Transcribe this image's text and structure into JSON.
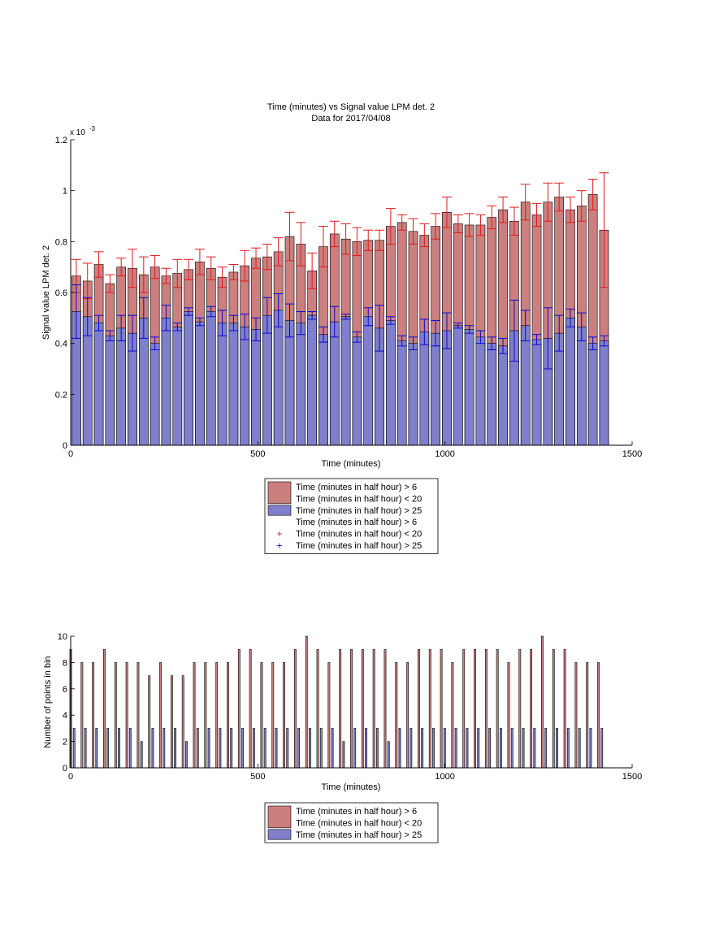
{
  "chart_data": [
    {
      "type": "bar",
      "title": "Time (minutes) vs Signal value LPM det. 2",
      "subtitle": "Data for 2017/04/08",
      "xlabel": "Time (minutes)",
      "ylabel": "Signal value LPM det. 2",
      "exponent_label": "x 10",
      "exponent_power": "-3",
      "xlim": [
        0,
        1500
      ],
      "ylim": [
        0,
        1.2
      ],
      "xticks": [
        "0",
        "500",
        "1000",
        "1500"
      ],
      "yticks": [
        "0",
        "0.2",
        "0.4",
        "0.6",
        "0.8",
        "1",
        "1.2"
      ],
      "grid": false,
      "legend_position": "below",
      "x": [
        15,
        45,
        75,
        105,
        135,
        165,
        195,
        225,
        255,
        285,
        315,
        345,
        375,
        405,
        435,
        465,
        495,
        525,
        555,
        585,
        615,
        645,
        675,
        705,
        735,
        765,
        795,
        825,
        855,
        885,
        915,
        945,
        975,
        1005,
        1035,
        1065,
        1095,
        1125,
        1155,
        1185,
        1215,
        1245,
        1275,
        1305,
        1335,
        1365,
        1395,
        1425
      ],
      "series": [
        {
          "name": "Time (minutes in half hour) > 6\nTime (minutes in half hour) < 20",
          "color": "#cc7f7f",
          "error_color": "#e0191b",
          "values": [
            0.665,
            0.645,
            0.71,
            0.635,
            0.7,
            0.695,
            0.67,
            0.7,
            0.665,
            0.675,
            0.69,
            0.72,
            0.695,
            0.66,
            0.68,
            0.705,
            0.735,
            0.74,
            0.76,
            0.82,
            0.79,
            0.685,
            0.78,
            0.83,
            0.81,
            0.8,
            0.805,
            0.805,
            0.86,
            0.875,
            0.84,
            0.825,
            0.86,
            0.915,
            0.87,
            0.865,
            0.865,
            0.895,
            0.925,
            0.88,
            0.955,
            0.905,
            0.955,
            0.975,
            0.925,
            0.94,
            0.985,
            0.845
          ],
          "errors": [
            0.065,
            0.07,
            0.05,
            0.035,
            0.035,
            0.075,
            0.07,
            0.045,
            0.03,
            0.055,
            0.04,
            0.05,
            0.045,
            0.04,
            0.03,
            0.06,
            0.04,
            0.05,
            0.055,
            0.095,
            0.085,
            0.07,
            0.08,
            0.05,
            0.06,
            0.055,
            0.04,
            0.04,
            0.07,
            0.03,
            0.05,
            0.045,
            0.05,
            0.06,
            0.035,
            0.045,
            0.04,
            0.045,
            0.05,
            0.055,
            0.07,
            0.045,
            0.075,
            0.055,
            0.05,
            0.06,
            0.06,
            0.225
          ]
        },
        {
          "name": "Time (minutes in half hour) > 25",
          "color": "#7f7fcc",
          "error_color": "#0a0ad0",
          "values": [
            0.525,
            0.505,
            0.48,
            0.43,
            0.46,
            0.44,
            0.5,
            0.4,
            0.5,
            0.465,
            0.525,
            0.485,
            0.525,
            0.48,
            0.48,
            0.465,
            0.455,
            0.51,
            0.53,
            0.49,
            0.48,
            0.51,
            0.435,
            0.485,
            0.505,
            0.425,
            0.505,
            0.46,
            0.49,
            0.41,
            0.4,
            0.445,
            0.44,
            0.45,
            0.47,
            0.455,
            0.425,
            0.4,
            0.39,
            0.45,
            0.47,
            0.415,
            0.42,
            0.44,
            0.5,
            0.465,
            0.4,
            0.41
          ],
          "errors": [
            0.105,
            0.075,
            0.03,
            0.02,
            0.05,
            0.07,
            0.08,
            0.025,
            0.05,
            0.015,
            0.015,
            0.015,
            0.02,
            0.05,
            0.03,
            0.05,
            0.045,
            0.07,
            0.065,
            0.065,
            0.045,
            0.015,
            0.03,
            0.06,
            0.01,
            0.02,
            0.035,
            0.09,
            0.015,
            0.02,
            0.025,
            0.05,
            0.05,
            0.07,
            0.01,
            0.015,
            0.025,
            0.025,
            0.03,
            0.12,
            0.06,
            0.02,
            0.12,
            0.07,
            0.035,
            0.055,
            0.025,
            0.02
          ]
        }
      ]
    },
    {
      "type": "bar",
      "xlabel": "Time (minutes)",
      "ylabel": "Number of points in bin",
      "xlim": [
        0,
        1500
      ],
      "ylim": [
        0,
        10
      ],
      "xticks": [
        "0",
        "500",
        "1000",
        "1500"
      ],
      "yticks": [
        "0",
        "2",
        "4",
        "6",
        "8",
        "10"
      ],
      "grid": false,
      "legend_position": "below",
      "x": [
        15,
        45,
        75,
        105,
        135,
        165,
        195,
        225,
        255,
        285,
        315,
        345,
        375,
        405,
        435,
        465,
        495,
        525,
        555,
        585,
        615,
        645,
        675,
        705,
        735,
        765,
        795,
        825,
        855,
        885,
        915,
        945,
        975,
        1005,
        1035,
        1065,
        1095,
        1125,
        1155,
        1185,
        1215,
        1245,
        1275,
        1305,
        1335,
        1365,
        1395,
        1425
      ],
      "series": [
        {
          "name": "Time (minutes in half hour) > 6\nTime (minutes in half hour) < 20",
          "color": "#cc7f7f",
          "values": [
            9,
            8,
            8,
            9,
            8,
            8,
            8,
            7,
            8,
            7,
            7,
            8,
            8,
            8,
            8,
            9,
            9,
            8,
            8,
            8,
            9,
            10,
            9,
            8,
            9,
            9,
            9,
            9,
            9,
            8,
            8,
            9,
            9,
            9,
            8,
            9,
            9,
            9,
            9,
            8,
            9,
            9,
            10,
            9,
            9,
            8,
            8,
            8
          ]
        },
        {
          "name": "Time (minutes in half hour) > 25",
          "color": "#7f7fcc",
          "values": [
            3,
            3,
            3,
            3,
            3,
            3,
            2,
            3,
            3,
            3,
            2,
            3,
            3,
            3,
            3,
            3,
            3,
            3,
            3,
            3,
            3,
            3,
            3,
            3,
            2,
            3,
            3,
            3,
            2,
            3,
            3,
            3,
            3,
            3,
            3,
            3,
            3,
            3,
            3,
            3,
            3,
            3,
            3,
            3,
            3,
            3,
            3,
            3
          ]
        }
      ]
    }
  ]
}
